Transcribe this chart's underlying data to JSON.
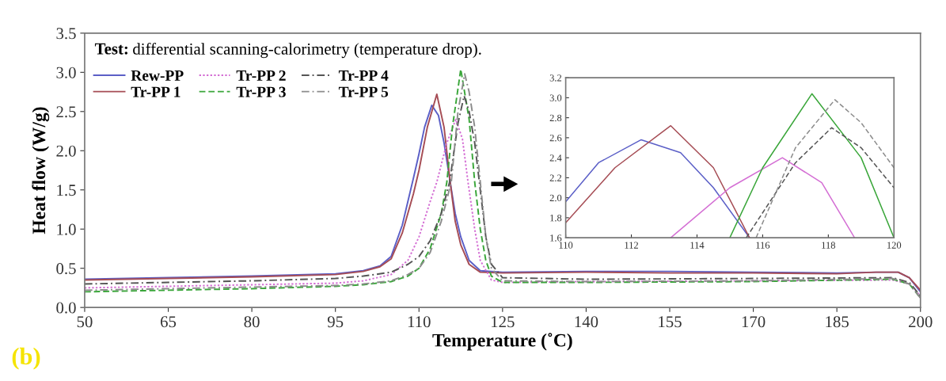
{
  "chart_data": [
    {
      "type": "line",
      "title": "Test: differential scanning-calorimetry (temperature drop).",
      "xlabel": "Temperature (˚C)",
      "ylabel": "Heat flow (W/g)",
      "annotations": [
        "(b)"
      ],
      "xlim": [
        50,
        200
      ],
      "xticks": [
        50,
        65,
        80,
        95,
        110,
        125,
        140,
        155,
        170,
        185,
        200
      ],
      "ylim": [
        0,
        3.5
      ],
      "yticks": [
        {
          "value": 0,
          "label": "0.0"
        },
        0.5,
        {
          "value": 1,
          "label": "1.0"
        },
        1.5,
        {
          "value": 2,
          "label": "2.0"
        },
        2.5,
        {
          "value": 3,
          "label": "3.0"
        },
        3.5
      ],
      "grid": false,
      "legend": "top left",
      "series": [
        {
          "name": "Rew-PP",
          "color": "#5b5fc7",
          "line_style": "solid",
          "x": [
            50,
            65,
            80,
            95,
            100,
            103,
            105,
            107,
            109,
            110,
            111,
            112.3,
            113.5,
            114.5,
            115.6,
            116.5,
            117.5,
            119,
            121,
            125,
            140,
            155,
            170,
            185,
            192,
            196,
            198,
            200
          ],
          "values": [
            0.36,
            0.38,
            0.4,
            0.43,
            0.47,
            0.53,
            0.65,
            1.05,
            1.65,
            1.96,
            2.3,
            2.58,
            2.45,
            2.1,
            1.6,
            1.2,
            0.9,
            0.6,
            0.47,
            0.45,
            0.46,
            0.46,
            0.45,
            0.44,
            0.45,
            0.45,
            0.38,
            0.2
          ]
        },
        {
          "name": "Tr-PP 1",
          "color": "#a64d55",
          "line_style": "solid",
          "x": [
            50,
            65,
            80,
            95,
            100,
            103,
            105,
            107,
            109,
            110,
            111.5,
            113.2,
            114.5,
            115.6,
            116.5,
            117.5,
            119,
            121,
            125,
            140,
            155,
            170,
            185,
            192,
            196,
            198,
            200
          ],
          "values": [
            0.35,
            0.37,
            0.39,
            0.42,
            0.46,
            0.52,
            0.62,
            0.95,
            1.45,
            1.75,
            2.3,
            2.72,
            2.3,
            1.6,
            1.1,
            0.8,
            0.55,
            0.45,
            0.44,
            0.45,
            0.44,
            0.44,
            0.43,
            0.45,
            0.45,
            0.38,
            0.22
          ]
        },
        {
          "name": "Tr-PP 2",
          "color": "#d46fd4",
          "line_style": "dotted",
          "x": [
            50,
            65,
            80,
            95,
            100,
            105,
            108,
            110,
            112,
            113.2,
            115,
            116.6,
            117.8,
            118.8,
            120,
            121,
            123,
            125,
            140,
            170,
            195,
            198,
            200
          ],
          "values": [
            0.25,
            0.27,
            0.29,
            0.31,
            0.34,
            0.42,
            0.6,
            0.9,
            1.35,
            1.6,
            2.1,
            2.4,
            2.15,
            1.6,
            1.0,
            0.6,
            0.35,
            0.32,
            0.33,
            0.34,
            0.35,
            0.3,
            0.15
          ]
        },
        {
          "name": "Tr-PP 3",
          "color": "#3aa63a",
          "line_style": "dashed",
          "x": [
            50,
            65,
            80,
            95,
            100,
            105,
            108,
            110,
            112,
            114,
            115,
            116,
            117.5,
            119,
            120,
            121,
            122,
            123,
            125,
            140,
            170,
            195,
            198,
            200
          ],
          "values": [
            0.2,
            0.22,
            0.24,
            0.27,
            0.29,
            0.33,
            0.4,
            0.5,
            0.75,
            1.2,
            1.6,
            2.3,
            3.04,
            2.4,
            1.6,
            1.0,
            0.6,
            0.4,
            0.32,
            0.32,
            0.33,
            0.36,
            0.3,
            0.12
          ]
        },
        {
          "name": "Tr-PP 4",
          "color": "#555555",
          "line_style": "dashdot",
          "x": [
            50,
            65,
            80,
            95,
            100,
            105,
            108,
            110,
            112,
            114,
            115.5,
            117,
            118.1,
            119,
            120,
            121,
            122,
            123,
            125,
            140,
            170,
            195,
            198,
            200
          ],
          "values": [
            0.3,
            0.32,
            0.34,
            0.37,
            0.4,
            0.45,
            0.55,
            0.65,
            0.85,
            1.2,
            1.6,
            2.35,
            2.7,
            2.5,
            2.1,
            1.5,
            0.9,
            0.55,
            0.38,
            0.36,
            0.37,
            0.38,
            0.32,
            0.15
          ]
        },
        {
          "name": "Tr-PP 5",
          "color": "#8c8c8c",
          "line_style": "dashdot",
          "x": [
            50,
            65,
            80,
            95,
            100,
            105,
            108,
            110,
            112,
            114,
            115.8,
            117,
            118.2,
            119,
            120,
            121,
            122,
            123,
            125,
            140,
            170,
            195,
            198,
            200
          ],
          "values": [
            0.22,
            0.24,
            0.26,
            0.28,
            0.3,
            0.34,
            0.42,
            0.5,
            0.7,
            1.1,
            1.6,
            2.5,
            2.98,
            2.75,
            2.3,
            1.6,
            0.9,
            0.5,
            0.34,
            0.33,
            0.34,
            0.37,
            0.3,
            0.12
          ]
        }
      ]
    },
    {
      "type": "line",
      "xlim": [
        110,
        120
      ],
      "xticks": [
        110,
        112,
        114,
        116,
        118,
        120
      ],
      "ylim": [
        1.6,
        3.2
      ],
      "yticks": [
        1.6,
        1.8,
        {
          "value": 2,
          "label": "2.0"
        },
        2.2,
        2.4,
        2.6,
        2.8,
        {
          "value": 3,
          "label": "3.0"
        },
        3.2
      ],
      "grid": false,
      "series": [
        {
          "color": "#5b5fc7",
          "line_style": "solid",
          "x": [
            110,
            111,
            112.3,
            113.5,
            114.5,
            115.6
          ],
          "values": [
            1.96,
            2.35,
            2.58,
            2.45,
            2.1,
            1.6
          ]
        },
        {
          "color": "#a64d55",
          "line_style": "solid",
          "x": [
            110,
            111.5,
            113.2,
            114.5,
            115.6
          ],
          "values": [
            1.75,
            2.3,
            2.72,
            2.3,
            1.6
          ]
        },
        {
          "color": "#d46fd4",
          "line_style": "solid",
          "x": [
            113.2,
            115,
            116.6,
            117.8,
            118.8
          ],
          "values": [
            1.6,
            2.1,
            2.4,
            2.15,
            1.6
          ]
        },
        {
          "color": "#3aa63a",
          "line_style": "solid",
          "x": [
            115,
            116,
            117.5,
            119,
            120
          ],
          "values": [
            1.6,
            2.3,
            3.04,
            2.4,
            1.6
          ]
        },
        {
          "color": "#555555",
          "line_style": "dashed",
          "x": [
            115.5,
            117,
            118.1,
            119,
            120
          ],
          "values": [
            1.6,
            2.35,
            2.7,
            2.5,
            2.1
          ]
        },
        {
          "color": "#8c8c8c",
          "line_style": "dashed",
          "x": [
            115.8,
            117,
            118.2,
            119,
            120
          ],
          "values": [
            1.6,
            2.5,
            2.98,
            2.75,
            2.3
          ]
        }
      ]
    }
  ]
}
